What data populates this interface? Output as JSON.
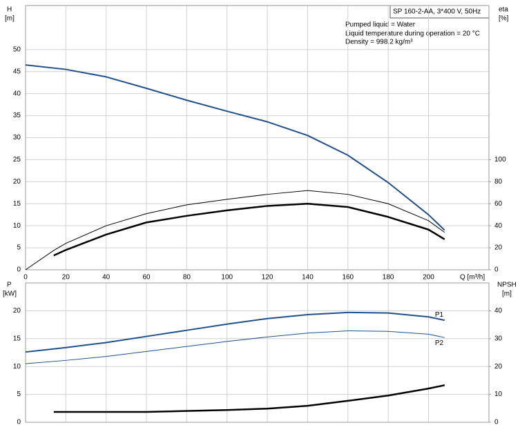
{
  "chart_data": [
    {
      "type": "line",
      "title": "SP 160-2-AA, 3*400 V, 50Hz",
      "annotations": [
        "Pumped liquid = Water",
        "Liquid temperature during operation = 20 °C",
        "Density = 998.2 kg/m³"
      ],
      "ylabel": "H",
      "yunit": "[m]",
      "y2label": "eta",
      "y2unit": "[%]",
      "xlabel": "Q [m³/h]",
      "xlim": [
        0,
        230
      ],
      "xticks": [
        0,
        20,
        40,
        60,
        80,
        100,
        120,
        140,
        160,
        180,
        200
      ],
      "ylim": [
        0,
        60
      ],
      "yticks": [
        0,
        5,
        10,
        15,
        20,
        25,
        30,
        35,
        40,
        45,
        50
      ],
      "y2lim": [
        0,
        240
      ],
      "y2ticks": [
        0,
        20,
        40,
        60,
        80,
        100
      ],
      "grid": true,
      "series": [
        {
          "color": "#1f4e8c",
          "line_width": 2,
          "x": [
            0,
            20,
            40,
            60,
            80,
            100,
            120,
            140,
            160,
            180,
            200,
            208
          ],
          "values": [
            46.5,
            45.5,
            43.8,
            41.2,
            38.5,
            36.0,
            33.6,
            30.5,
            26.0,
            19.8,
            12.5,
            9.0
          ]
        },
        {
          "color": "#000000",
          "line_width": 1,
          "axis": "y2",
          "x": [
            0,
            14,
            20,
            40,
            60,
            80,
            100,
            120,
            140,
            160,
            180,
            200,
            208
          ],
          "values": [
            0,
            17.6,
            24,
            40,
            51,
            59,
            64,
            68.5,
            72,
            68.5,
            60,
            44.6,
            34
          ]
        },
        {
          "color": "#000000",
          "line_width": 2.5,
          "axis": "y2",
          "x": [
            14,
            20,
            40,
            60,
            80,
            100,
            120,
            140,
            160,
            180,
            200,
            208
          ],
          "values": [
            13,
            18,
            32,
            43,
            49,
            54,
            58,
            60,
            57,
            48,
            36.5,
            27.7
          ]
        }
      ]
    },
    {
      "type": "line",
      "ylabel": "P",
      "yunit": "[kW]",
      "y2label": "NPSH",
      "y2unit": "[m]",
      "xlim": [
        0,
        230
      ],
      "xticks": [
        0,
        20,
        40,
        60,
        80,
        100,
        120,
        140,
        160,
        180,
        200
      ],
      "ylim": [
        0,
        25
      ],
      "yticks": [
        0,
        5,
        10,
        15,
        20
      ],
      "y2lim": [
        0,
        50
      ],
      "y2ticks": [
        0,
        10,
        20,
        30,
        40
      ],
      "grid": true,
      "series": [
        {
          "name": "P1",
          "color": "#1f4e8c",
          "line_width": 2,
          "x": [
            0,
            20,
            40,
            60,
            80,
            100,
            120,
            140,
            160,
            180,
            200,
            208
          ],
          "values": [
            12.6,
            13.4,
            14.3,
            15.4,
            16.5,
            17.6,
            18.6,
            19.3,
            19.7,
            19.6,
            18.9,
            18.3
          ]
        },
        {
          "name": "P2",
          "color": "#1f4e8c",
          "line_width": 1,
          "x": [
            0,
            20,
            40,
            60,
            80,
            100,
            120,
            140,
            160,
            180,
            200,
            208
          ],
          "values": [
            10.5,
            11.1,
            11.8,
            12.7,
            13.6,
            14.5,
            15.3,
            16.0,
            16.4,
            16.3,
            15.8,
            15.2
          ]
        },
        {
          "color": "#000000",
          "line_width": 2.5,
          "axis": "y2",
          "x": [
            14,
            60,
            100,
            120,
            140,
            160,
            180,
            200,
            208
          ],
          "values": [
            3.7,
            3.7,
            4.4,
            4.9,
            5.9,
            7.7,
            9.6,
            12.1,
            13.3
          ]
        }
      ]
    }
  ]
}
